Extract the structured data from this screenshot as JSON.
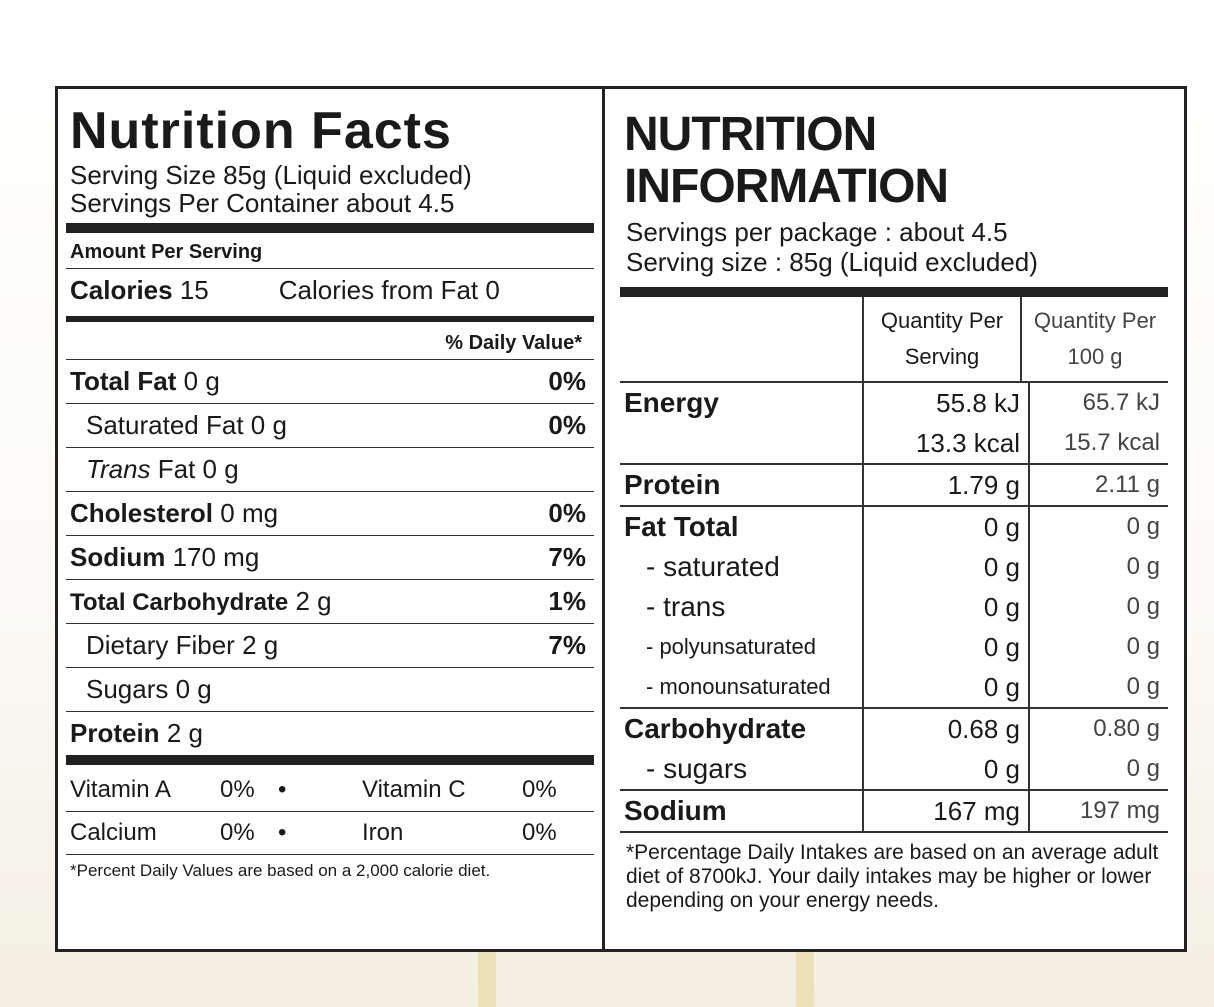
{
  "left": {
    "title": "Nutrition Facts",
    "serving_size": "Serving Size 85g (Liquid excluded)",
    "servings_per_container": "Servings Per Container about 4.5",
    "amount_per_serving": "Amount Per Serving",
    "calories_label": "Calories",
    "calories_value": "15",
    "calories_from_fat": "Calories from Fat 0",
    "daily_value_header": "% Daily Value*",
    "rows": [
      {
        "label": "Total Fat",
        "amount": "0 g",
        "dv": "0%"
      },
      {
        "label": "Saturated Fat",
        "amount": "0 g",
        "dv": "0%"
      },
      {
        "label": "Trans",
        "label_rest": "Fat 0 g",
        "dv": ""
      },
      {
        "label": "Cholesterol",
        "amount": "0 mg",
        "dv": "0%"
      },
      {
        "label": "Sodium",
        "amount": "170 mg",
        "dv": "7%"
      },
      {
        "label": "Total Carbohydrate",
        "amount": "2 g",
        "dv": "1%"
      },
      {
        "label": "Dietary Fiber",
        "amount": "2 g",
        "dv": "7%"
      },
      {
        "label": "Sugars",
        "amount": "0 g",
        "dv": ""
      },
      {
        "label": "Protein",
        "amount": "2 g",
        "dv": ""
      }
    ],
    "vitamins": [
      {
        "name1": "Vitamin A",
        "val1": "0%",
        "bullet": "•",
        "name2": "Vitamin C",
        "val2": "0%"
      },
      {
        "name1": "Calcium",
        "val1": "0%",
        "bullet": "•",
        "name2": "Iron",
        "val2": "0%"
      }
    ],
    "footnote": "*Percent Daily Values are based on a 2,000 calorie diet."
  },
  "right": {
    "title": "NUTRITION INFORMATION",
    "servings_per_package": "Servings per package : about 4.5",
    "serving_size": "Serving size : 85g (Liquid excluded)",
    "col_per_serving": "Quantity Per Serving",
    "col_per_100g": "Quantity Per 100 g",
    "rows": {
      "energy": {
        "label": "Energy",
        "serv_kj": "55.8 kJ",
        "serv_kcal": "13.3 kcal",
        "per100_kj": "65.7 kJ",
        "per100_kcal": "15.7 kcal"
      },
      "protein": {
        "label": "Protein",
        "serv": "1.79 g",
        "per100": "2.11 g"
      },
      "fat": {
        "label": "Fat Total",
        "serv": "0 g",
        "per100": "0 g",
        "subs": [
          {
            "label": "- saturated",
            "serv": "0 g",
            "per100": "0 g"
          },
          {
            "label": "- trans",
            "serv": "0 g",
            "per100": "0 g"
          },
          {
            "label": "- polyunsaturated",
            "serv": "0 g",
            "per100": "0 g"
          },
          {
            "label": "- monounsaturated",
            "serv": "0 g",
            "per100": "0 g"
          }
        ]
      },
      "carbohydrate": {
        "label": "Carbohydrate",
        "serv": "0.68 g",
        "per100": "0.80 g",
        "sugars_label": "- sugars",
        "sugars_serv": "0 g",
        "sugars_per100": "0 g"
      },
      "sodium": {
        "label": "Sodium",
        "serv": "167 mg",
        "per100": "197 mg"
      }
    },
    "footnote": "*Percentage Daily Intakes are based on an average adult diet of 8700kJ. Your daily intakes may be higher or lower depending on your energy needs."
  }
}
